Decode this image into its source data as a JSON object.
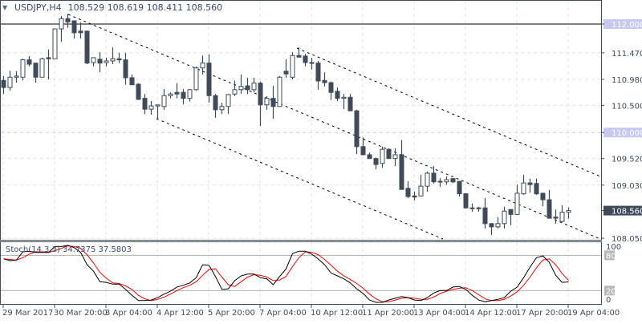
{
  "header": {
    "symbol": "USDJPY,H4",
    "ohlc": "108.529 108.619 108.411 108.560",
    "menu_icon": "triangle-down-icon"
  },
  "stoch_label": "Stoch(14,3,3) 34.7375 37.5803",
  "colors": {
    "bear": "#404b5a",
    "bull": "#ffffff",
    "axis": "#404b5a",
    "k_line": "#000000",
    "d_line": "#ff0000",
    "level_highlight": "#c8c8f0",
    "current_price_bg": "#404b5a"
  },
  "price_axis": {
    "ticks": [
      "111.470",
      "110.980",
      "110.500",
      "109.520",
      "109.030",
      "108.050"
    ],
    "highlight_levels": [
      "112.000",
      "110.000"
    ],
    "current_price": "108.560"
  },
  "stoch_axis": {
    "ticks": [
      "100",
      "0"
    ],
    "levels": [
      "80",
      "20"
    ]
  },
  "time_axis": [
    "29 Mar 2017",
    "30 Mar 20:00",
    "3 Apr 04:00",
    "4 Apr 12:00",
    "5 Apr 20:00",
    "7 Apr 04:00",
    "10 Apr 12:00",
    "11 Apr 20:00",
    "13 Apr 04:00",
    "14 Apr 12:00",
    "17 Apr 20:00",
    "19 Apr 04:00"
  ],
  "chart_data": {
    "type": "candlestick",
    "ylim": [
      108.0,
      112.4
    ],
    "horizontal_lines": [
      112.0,
      110.0
    ],
    "ohlc": [
      [
        110.96,
        111.04,
        110.71,
        110.83
      ],
      [
        110.83,
        111.14,
        110.77,
        111.02
      ],
      [
        111.02,
        111.13,
        110.92,
        111.04
      ],
      [
        111.02,
        111.36,
        110.96,
        111.34
      ],
      [
        111.34,
        111.41,
        111.22,
        111.26
      ],
      [
        111.28,
        111.28,
        110.92,
        111.02
      ],
      [
        111.02,
        111.38,
        111.02,
        111.36
      ],
      [
        111.38,
        111.53,
        110.98,
        111.36
      ],
      [
        111.36,
        111.91,
        111.36,
        111.91
      ],
      [
        111.91,
        112.15,
        111.67,
        112.1
      ],
      [
        112.1,
        112.19,
        111.93,
        112.04
      ],
      [
        112.06,
        112.06,
        111.73,
        111.84
      ],
      [
        111.87,
        112.03,
        111.73,
        111.84
      ],
      [
        111.87,
        111.87,
        111.26,
        111.28
      ],
      [
        111.29,
        111.38,
        111.22,
        111.38
      ],
      [
        111.35,
        111.48,
        111.11,
        111.28
      ],
      [
        111.29,
        111.38,
        111.22,
        111.32
      ],
      [
        111.32,
        111.57,
        111.26,
        111.36
      ],
      [
        111.36,
        111.47,
        111.28,
        111.34
      ],
      [
        111.34,
        111.47,
        110.88,
        111.01
      ],
      [
        111.01,
        111.07,
        110.88,
        110.88
      ],
      [
        110.89,
        110.91,
        110.61,
        110.61
      ],
      [
        110.63,
        110.71,
        110.34,
        110.43
      ],
      [
        110.43,
        110.58,
        110.33,
        110.49
      ],
      [
        110.49,
        110.51,
        110.25,
        110.51
      ],
      [
        110.48,
        110.8,
        110.42,
        110.68
      ],
      [
        110.68,
        110.74,
        110.63,
        110.71
      ],
      [
        110.74,
        110.91,
        110.63,
        110.71
      ],
      [
        110.74,
        110.8,
        110.52,
        110.63
      ],
      [
        110.63,
        110.8,
        110.57,
        110.79
      ],
      [
        110.79,
        111.22,
        110.77,
        111.19
      ],
      [
        111.19,
        111.42,
        111.07,
        111.28
      ],
      [
        111.28,
        111.44,
        110.55,
        110.68
      ],
      [
        110.68,
        110.71,
        110.27,
        110.42
      ],
      [
        110.42,
        110.55,
        110.34,
        110.48
      ],
      [
        110.48,
        110.71,
        110.34,
        110.7
      ],
      [
        110.71,
        110.96,
        110.67,
        110.79
      ],
      [
        110.79,
        111.07,
        110.71,
        110.85
      ],
      [
        110.86,
        111.01,
        110.71,
        110.79
      ],
      [
        110.79,
        111.01,
        110.74,
        110.91
      ],
      [
        110.91,
        110.94,
        110.12,
        110.51
      ],
      [
        110.51,
        110.67,
        110.42,
        110.63
      ],
      [
        110.63,
        110.86,
        110.25,
        110.48
      ],
      [
        110.48,
        111.04,
        110.48,
        111.02
      ],
      [
        111.13,
        111.35,
        111.01,
        111.08
      ],
      [
        111.02,
        111.48,
        110.98,
        111.42
      ],
      [
        111.42,
        111.57,
        111.39,
        111.39
      ],
      [
        111.41,
        111.45,
        111.22,
        111.29
      ],
      [
        111.29,
        111.38,
        111.16,
        111.28
      ],
      [
        111.28,
        111.32,
        110.79,
        110.95
      ],
      [
        110.96,
        111.11,
        110.85,
        110.92
      ],
      [
        110.92,
        110.94,
        110.6,
        110.74
      ],
      [
        110.76,
        110.83,
        110.58,
        110.63
      ],
      [
        110.63,
        110.71,
        110.43,
        110.65
      ],
      [
        110.65,
        110.71,
        110.4,
        110.4
      ],
      [
        110.4,
        110.42,
        109.6,
        109.74
      ],
      [
        109.74,
        109.91,
        109.59,
        109.59
      ],
      [
        109.59,
        109.63,
        109.52,
        109.52
      ],
      [
        109.52,
        109.54,
        109.32,
        109.41
      ],
      [
        109.43,
        109.74,
        109.35,
        109.69
      ],
      [
        109.69,
        109.71,
        109.52,
        109.52
      ],
      [
        109.52,
        109.71,
        109.38,
        109.59
      ],
      [
        109.59,
        109.86,
        108.95,
        108.95
      ],
      [
        108.97,
        109.1,
        108.79,
        108.82
      ],
      [
        108.83,
        108.91,
        108.75,
        108.81
      ],
      [
        108.83,
        109.22,
        108.83,
        109.01
      ],
      [
        109.01,
        109.28,
        108.91,
        109.25
      ],
      [
        109.25,
        109.38,
        109.06,
        109.09
      ],
      [
        109.1,
        109.16,
        109.0,
        109.1
      ],
      [
        109.09,
        109.19,
        109.04,
        109.13
      ],
      [
        109.15,
        109.16,
        109.07,
        109.09
      ],
      [
        109.1,
        109.1,
        108.82,
        108.87
      ],
      [
        108.87,
        108.88,
        108.6,
        108.61
      ],
      [
        108.61,
        108.69,
        108.54,
        108.61
      ],
      [
        108.61,
        108.63,
        108.54,
        108.61
      ],
      [
        108.61,
        108.79,
        108.23,
        108.32
      ],
      [
        108.32,
        108.33,
        108.11,
        108.26
      ],
      [
        108.26,
        108.44,
        108.23,
        108.32
      ],
      [
        108.32,
        108.63,
        108.23,
        108.55
      ],
      [
        108.58,
        108.58,
        108.29,
        108.49
      ],
      [
        108.49,
        109.04,
        108.48,
        108.88
      ],
      [
        108.87,
        109.22,
        108.85,
        109.07
      ],
      [
        109.07,
        109.15,
        108.89,
        109.04
      ],
      [
        109.06,
        109.15,
        108.85,
        108.87
      ],
      [
        108.88,
        108.89,
        108.64,
        108.76
      ],
      [
        108.76,
        108.94,
        108.41,
        108.42
      ],
      [
        108.44,
        108.58,
        108.32,
        108.42
      ],
      [
        108.36,
        108.66,
        108.35,
        108.53
      ],
      [
        108.529,
        108.619,
        108.411,
        108.56
      ]
    ],
    "stochastic": {
      "ylim": [
        0,
        100
      ],
      "levels": [
        80,
        20
      ],
      "k": [
        74,
        71,
        72,
        86,
        87,
        85,
        85,
        85,
        95,
        95,
        97,
        93,
        85,
        64,
        53,
        35,
        34,
        31,
        31,
        22,
        12,
        3,
        3,
        4,
        8,
        14,
        19,
        26,
        29,
        33,
        42,
        64,
        63,
        44,
        22,
        23,
        37,
        45,
        48,
        48,
        42,
        40,
        30,
        44,
        57,
        83,
        87,
        87,
        82,
        74,
        64,
        50,
        45,
        40,
        33,
        23,
        15,
        4,
        0,
        0,
        4,
        7,
        10,
        8,
        4,
        3,
        8,
        16,
        20,
        20,
        26,
        27,
        22,
        12,
        4,
        1,
        3,
        5,
        8,
        19,
        26,
        42,
        60,
        76,
        79,
        68,
        46,
        34,
        34.74
      ],
      "d": [
        74,
        73,
        72,
        76,
        82,
        86,
        86,
        85,
        88,
        92,
        96,
        95,
        92,
        81,
        67,
        51,
        41,
        33,
        32,
        28,
        22,
        12,
        6,
        3,
        5,
        9,
        14,
        20,
        25,
        29,
        35,
        46,
        56,
        57,
        43,
        30,
        27,
        35,
        43,
        47,
        46,
        43,
        37,
        38,
        44,
        61,
        76,
        86,
        85,
        81,
        73,
        63,
        53,
        45,
        39,
        32,
        24,
        14,
        6,
        1,
        1,
        4,
        7,
        8,
        7,
        5,
        5,
        9,
        15,
        19,
        22,
        24,
        25,
        20,
        13,
        6,
        3,
        3,
        5,
        11,
        18,
        29,
        43,
        59,
        72,
        74,
        64,
        49,
        37.58
      ]
    }
  }
}
